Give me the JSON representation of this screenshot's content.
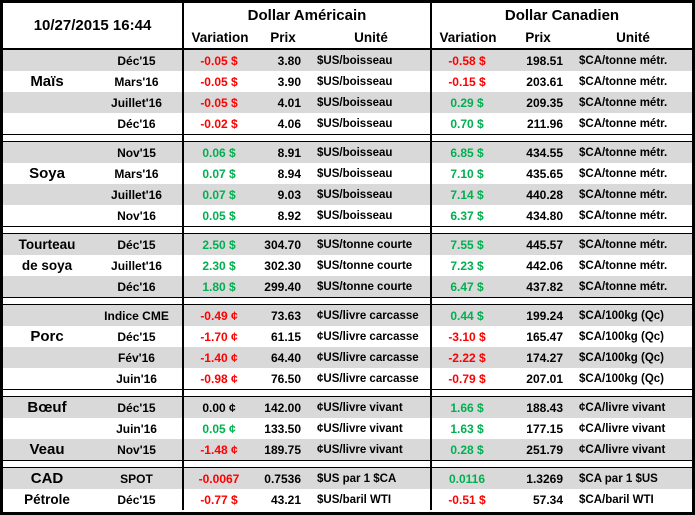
{
  "header": {
    "timestamp": "10/27/2015 16:44",
    "us_title": "Dollar Américain",
    "ca_title": "Dollar Canadien",
    "subcols": {
      "variation": "Variation",
      "prix": "Prix",
      "unite": "Unité"
    }
  },
  "palette": {
    "up": "#00B050",
    "down": "#FF0000",
    "flat": "#000000",
    "band": "#D9D9D9",
    "border": "#000000"
  },
  "groups": [
    {
      "commodity": "Maïs",
      "rows": [
        {
          "label": "",
          "month": "Déc'15",
          "us": {
            "variation": "-0.05 $",
            "dir": "down",
            "prix": "3.80",
            "unite": "$US/boisseau"
          },
          "ca": {
            "variation": "-0.58 $",
            "dir": "down",
            "prix": "198.51",
            "unite": "$CA/tonne métr."
          }
        },
        {
          "label": "Maïs",
          "month": "Mars'16",
          "us": {
            "variation": "-0.05 $",
            "dir": "down",
            "prix": "3.90",
            "unite": "$US/boisseau"
          },
          "ca": {
            "variation": "-0.15 $",
            "dir": "down",
            "prix": "203.61",
            "unite": "$CA/tonne métr."
          }
        },
        {
          "label": "",
          "month": "Juillet'16",
          "us": {
            "variation": "-0.05 $",
            "dir": "down",
            "prix": "4.01",
            "unite": "$US/boisseau"
          },
          "ca": {
            "variation": "0.29 $",
            "dir": "up",
            "prix": "209.35",
            "unite": "$CA/tonne métr."
          }
        },
        {
          "label": "",
          "month": "Déc'16",
          "us": {
            "variation": "-0.02 $",
            "dir": "down",
            "prix": "4.06",
            "unite": "$US/boisseau"
          },
          "ca": {
            "variation": "0.70 $",
            "dir": "up",
            "prix": "211.96",
            "unite": "$CA/tonne métr."
          }
        }
      ]
    },
    {
      "commodity": "Soya",
      "rows": [
        {
          "label": "",
          "month": "Nov'15",
          "us": {
            "variation": "0.06 $",
            "dir": "up",
            "prix": "8.91",
            "unite": "$US/boisseau"
          },
          "ca": {
            "variation": "6.85 $",
            "dir": "up",
            "prix": "434.55",
            "unite": "$CA/tonne métr."
          }
        },
        {
          "label": "Soya",
          "month": "Mars'16",
          "us": {
            "variation": "0.07 $",
            "dir": "up",
            "prix": "8.94",
            "unite": "$US/boisseau"
          },
          "ca": {
            "variation": "7.10 $",
            "dir": "up",
            "prix": "435.65",
            "unite": "$CA/tonne métr."
          }
        },
        {
          "label": "",
          "month": "Juillet'16",
          "us": {
            "variation": "0.07 $",
            "dir": "up",
            "prix": "9.03",
            "unite": "$US/boisseau"
          },
          "ca": {
            "variation": "7.14 $",
            "dir": "up",
            "prix": "440.28",
            "unite": "$CA/tonne métr."
          }
        },
        {
          "label": "",
          "month": "Nov'16",
          "us": {
            "variation": "0.05 $",
            "dir": "up",
            "prix": "8.92",
            "unite": "$US/boisseau"
          },
          "ca": {
            "variation": "6.37 $",
            "dir": "up",
            "prix": "434.80",
            "unite": "$CA/tonne métr."
          }
        }
      ]
    },
    {
      "commodity": "Tourteau de soya",
      "rows": [
        {
          "label": "Tourteau",
          "month": "Déc'15",
          "us": {
            "variation": "2.50 $",
            "dir": "up",
            "prix": "304.70",
            "unite": "$US/tonne courte"
          },
          "ca": {
            "variation": "7.55 $",
            "dir": "up",
            "prix": "445.57",
            "unite": "$CA/tonne métr."
          }
        },
        {
          "label": "de soya",
          "month": "Juillet'16",
          "us": {
            "variation": "2.30 $",
            "dir": "up",
            "prix": "302.30",
            "unite": "$US/tonne courte"
          },
          "ca": {
            "variation": "7.23 $",
            "dir": "up",
            "prix": "442.06",
            "unite": "$CA/tonne métr."
          }
        },
        {
          "label": "",
          "month": "Déc'16",
          "us": {
            "variation": "1.80 $",
            "dir": "up",
            "prix": "299.40",
            "unite": "$US/tonne courte"
          },
          "ca": {
            "variation": "6.47 $",
            "dir": "up",
            "prix": "437.82",
            "unite": "$CA/tonne métr."
          }
        }
      ]
    },
    {
      "commodity": "Porc",
      "rows": [
        {
          "label": "",
          "month": "Indice CME",
          "us": {
            "variation": "-0.49 ¢",
            "dir": "down",
            "prix": "73.63",
            "unite": "¢US/livre carcasse"
          },
          "ca": {
            "variation": "0.44 $",
            "dir": "up",
            "prix": "199.24",
            "unite": "$CA/100kg (Qc)"
          }
        },
        {
          "label": "Porc",
          "month": "Déc'15",
          "us": {
            "variation": "-1.70 ¢",
            "dir": "down",
            "prix": "61.15",
            "unite": "¢US/livre carcasse"
          },
          "ca": {
            "variation": "-3.10 $",
            "dir": "down",
            "prix": "165.47",
            "unite": "$CA/100kg (Qc)"
          }
        },
        {
          "label": "",
          "month": "Fév'16",
          "us": {
            "variation": "-1.40 ¢",
            "dir": "down",
            "prix": "64.40",
            "unite": "¢US/livre carcasse"
          },
          "ca": {
            "variation": "-2.22 $",
            "dir": "down",
            "prix": "174.27",
            "unite": "$CA/100kg (Qc)"
          }
        },
        {
          "label": "",
          "month": "Juin'16",
          "us": {
            "variation": "-0.98 ¢",
            "dir": "down",
            "prix": "76.50",
            "unite": "¢US/livre carcasse"
          },
          "ca": {
            "variation": "-0.79 $",
            "dir": "down",
            "prix": "207.01",
            "unite": "$CA/100kg (Qc)"
          }
        }
      ]
    },
    {
      "commodity": "Bœuf / Veau",
      "rows": [
        {
          "label": "Bœuf",
          "month": "Déc'15",
          "us": {
            "variation": "0.00 ¢",
            "dir": "flat",
            "prix": "142.00",
            "unite": "¢US/livre vivant"
          },
          "ca": {
            "variation": "1.66 $",
            "dir": "up",
            "prix": "188.43",
            "unite": "¢CA/livre vivant"
          }
        },
        {
          "label": "",
          "month": "Juin'16",
          "us": {
            "variation": "0.05 ¢",
            "dir": "up",
            "prix": "133.50",
            "unite": "¢US/livre vivant"
          },
          "ca": {
            "variation": "1.63 $",
            "dir": "up",
            "prix": "177.15",
            "unite": "¢CA/livre vivant"
          }
        },
        {
          "label": "Veau",
          "month": "Nov'15",
          "us": {
            "variation": "-1.48 ¢",
            "dir": "down",
            "prix": "189.75",
            "unite": "¢US/livre vivant"
          },
          "ca": {
            "variation": "0.28 $",
            "dir": "up",
            "prix": "251.79",
            "unite": "¢CA/livre vivant"
          }
        }
      ]
    },
    {
      "commodity": "CAD / Pétrole",
      "rows": [
        {
          "label": "CAD",
          "month": "SPOT",
          "us": {
            "variation": "-0.0067",
            "dir": "down",
            "prix": "0.7536",
            "unite": "$US par 1 $CA"
          },
          "ca": {
            "variation": "0.0116",
            "dir": "up",
            "prix": "1.3269",
            "unite": "$CA par 1 $US"
          }
        },
        {
          "label": "Pétrole",
          "month": "Déc'15",
          "us": {
            "variation": "-0.77 $",
            "dir": "down",
            "prix": "43.21",
            "unite": "$US/baril WTI"
          },
          "ca": {
            "variation": "-0.51 $",
            "dir": "down",
            "prix": "57.34",
            "unite": "$CA/baril WTI"
          }
        }
      ]
    }
  ]
}
